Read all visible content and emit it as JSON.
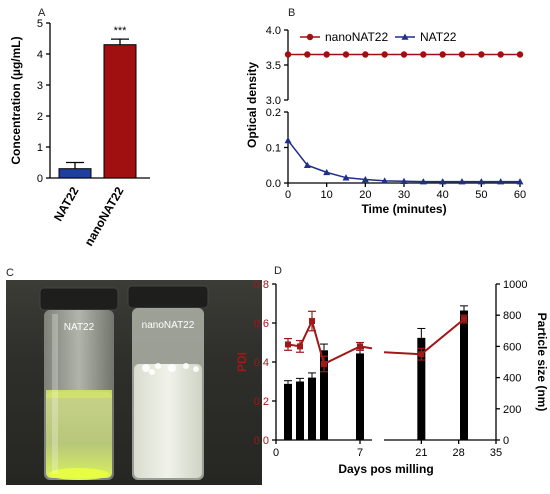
{
  "panels": {
    "a": "A",
    "b": "B",
    "c": "C",
    "d": "D"
  },
  "photo": {
    "vial_left_label": "NAT22",
    "vial_right_label": "nanoNAT22"
  },
  "chart_data": [
    {
      "panel": "A",
      "type": "bar",
      "categories": [
        "NAT22",
        "nanoNAT22"
      ],
      "values": [
        0.3,
        4.3
      ],
      "errors": [
        0.2,
        0.18
      ],
      "colors": [
        "#1f3fa0",
        "#a01010"
      ],
      "annotation": "***",
      "ylabel": "Concentration (µg/mL)",
      "ylim": [
        0,
        5
      ],
      "yticks": [
        0,
        1,
        2,
        3,
        4,
        5
      ]
    },
    {
      "panel": "B",
      "type": "line",
      "xlabel": "Time (minutes)",
      "ylabel": "Optical density",
      "xlim": [
        0,
        60
      ],
      "xticks": [
        0,
        10,
        20,
        30,
        40,
        50,
        60
      ],
      "broken_y_axis": true,
      "ylim_upper": [
        3.0,
        4.0
      ],
      "yticks_upper": [
        3.0,
        3.5,
        4.0
      ],
      "yticks_upper_labels": [
        "3.0",
        "3.5",
        "4.0"
      ],
      "ylim_lower": [
        0,
        0.2
      ],
      "yticks_lower": [
        0,
        0.1,
        0.2
      ],
      "yticks_lower_labels": [
        "0.0",
        "0.1",
        "0.2"
      ],
      "legend": "top",
      "series": [
        {
          "name": "nanoNAT22",
          "marker": "circle",
          "color": "#a01010",
          "x": [
            0,
            5,
            10,
            15,
            20,
            25,
            30,
            35,
            40,
            45,
            50,
            55,
            60
          ],
          "y": [
            3.65,
            3.65,
            3.65,
            3.65,
            3.65,
            3.65,
            3.65,
            3.65,
            3.65,
            3.65,
            3.65,
            3.65,
            3.65
          ]
        },
        {
          "name": "NAT22",
          "marker": "triangle",
          "color": "#1f2f8a",
          "x": [
            0,
            5,
            10,
            15,
            20,
            25,
            30,
            35,
            40,
            45,
            50,
            55,
            60
          ],
          "y": [
            0.12,
            0.05,
            0.03,
            0.015,
            0.01,
            0.006,
            0.005,
            0.004,
            0.004,
            0.004,
            0.004,
            0.004,
            0.004
          ]
        }
      ]
    },
    {
      "panel": "D",
      "type": "bar+line",
      "xlabel": "Days pos milling",
      "ylabel_left": "PDI",
      "ylabel_right": "Particle size (nm)",
      "xticks": [
        0,
        7,
        21,
        28,
        35
      ],
      "broken_x_axis": [
        8,
        14
      ],
      "ylim_left": [
        0,
        0.8
      ],
      "yticks_left": [
        0,
        0.2,
        0.4,
        0.6,
        0.8
      ],
      "yticks_left_labels": [
        "0.0",
        "0.2",
        "0.4",
        "0.6",
        "0.8"
      ],
      "ylim_right": [
        0,
        1000
      ],
      "yticks_right": [
        0,
        200,
        400,
        600,
        800,
        1000
      ],
      "left_axis_color": "#a01818",
      "bars": {
        "name": "Particle size",
        "color": "#000000",
        "x": [
          1,
          2,
          3,
          4,
          7,
          21,
          29
        ],
        "values": [
          360,
          375,
          400,
          575,
          555,
          655,
          830
        ],
        "errors": [
          20,
          20,
          30,
          40,
          30,
          60,
          30
        ]
      },
      "pdi_series": {
        "name": "PDI",
        "color": "#a01818",
        "x": [
          1,
          2,
          3,
          4,
          7,
          21,
          29
        ],
        "values": [
          0.49,
          0.48,
          0.61,
          0.39,
          0.48,
          0.44,
          0.62
        ],
        "errors": [
          0.03,
          0.03,
          0.05,
          0.04,
          0.02,
          0.03,
          0.02
        ]
      }
    }
  ]
}
